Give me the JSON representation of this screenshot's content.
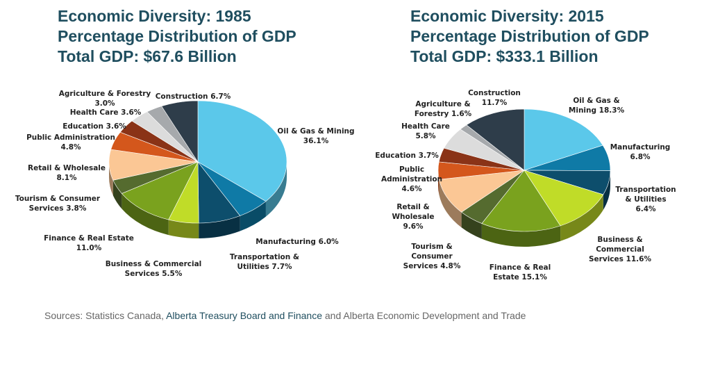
{
  "charts": [
    {
      "title": "Economic Diversity: 1985",
      "subtitle": "Percentage Distribution of GDP",
      "total": "Total GDP: $67.6 Billion"
    },
    {
      "title": "Economic Diversity: 2015",
      "subtitle": "Percentage Distribution of GDP",
      "total": "Total GDP: $333.1 Billion"
    }
  ],
  "sources": {
    "prefix": "Sources:  Statistics Canada, ",
    "org1": "Alberta Treasury Board and Finance",
    "mid": " and ",
    "org2": "Alberta Economic Development and Trade"
  },
  "chart_data": [
    {
      "type": "pie",
      "title": "Economic Diversity: 1985",
      "subtitle": "Percentage Distribution of GDP",
      "slices": [
        {
          "name": "Oil & Gas & Mining",
          "value": 36.1,
          "label": [
            "Oil & Gas & Mining",
            "36.1%"
          ],
          "color": "#5bc8ea"
        },
        {
          "name": "Manufacturing",
          "value": 6.0,
          "label": [
            "Manufacturing  6.0%"
          ],
          "color": "#0f7aa6"
        },
        {
          "name": "Transportation & Utilities",
          "value": 7.7,
          "label": [
            "Transportation &",
            "Utilities 7.7%"
          ],
          "color": "#0d4e6c"
        },
        {
          "name": "Business & Commercial Services",
          "value": 5.5,
          "label": [
            "Business & Commercial",
            "Services 5.5%"
          ],
          "color": "#c0dc28"
        },
        {
          "name": "Finance & Real Estate",
          "value": 11.0,
          "label": [
            "Finance & Real Estate",
            "11.0%"
          ],
          "color": "#7aa21e"
        },
        {
          "name": "Tourism & Consumer Services",
          "value": 3.8,
          "label": [
            "Tourism & Consumer",
            "Services 3.8%"
          ],
          "color": "#556b2f"
        },
        {
          "name": "Retail & Wholesale",
          "value": 8.1,
          "label": [
            "Retail & Wholesale",
            "8.1%"
          ],
          "color": "#fbc795"
        },
        {
          "name": "Public Administration",
          "value": 4.8,
          "label": [
            "Public Administration",
            "4.8%"
          ],
          "color": "#d4571c"
        },
        {
          "name": "Education",
          "value": 3.6,
          "label": [
            "Education  3.6%"
          ],
          "color": "#8a3317"
        },
        {
          "name": "Health Care",
          "value": 3.6,
          "label": [
            "Health Care 3.6%"
          ],
          "color": "#dcdcdc"
        },
        {
          "name": "Agriculture & Forestry",
          "value": 3.0,
          "label": [
            "Agriculture & Forestry",
            "3.0%"
          ],
          "color": "#a6a9ac"
        },
        {
          "name": "Construction",
          "value": 6.7,
          "label": [
            "Construction 6.7%"
          ],
          "color": "#2e3d4a"
        }
      ]
    },
    {
      "type": "pie",
      "title": "Economic Diversity: 2015",
      "subtitle": "Percentage Distribution of GDP",
      "slices": [
        {
          "name": "Oil & Gas & Mining",
          "value": 18.3,
          "label": [
            "Oil & Gas &",
            "Mining 18.3%"
          ],
          "color": "#5bc8ea"
        },
        {
          "name": "Manufacturing",
          "value": 6.8,
          "label": [
            "Manufacturing",
            "6.8%"
          ],
          "color": "#0f7aa6"
        },
        {
          "name": "Transportation & Utilities",
          "value": 6.4,
          "label": [
            "Transportation",
            "& Utilities",
            "6.4%"
          ],
          "color": "#0d4e6c"
        },
        {
          "name": "Business & Commercial Services",
          "value": 11.6,
          "label": [
            "Business &",
            "Commercial",
            "Services 11.6%"
          ],
          "color": "#c0dc28"
        },
        {
          "name": "Finance & Real Estate",
          "value": 15.1,
          "label": [
            "Finance & Real",
            "Estate 15.1%"
          ],
          "color": "#7aa21e"
        },
        {
          "name": "Tourism & Consumer Services",
          "value": 4.8,
          "label": [
            "Tourism &",
            "Consumer",
            "Services 4.8%"
          ],
          "color": "#556b2f"
        },
        {
          "name": "Retail & Wholesale",
          "value": 9.6,
          "label": [
            "Retail &",
            "Wholesale",
            "9.6%"
          ],
          "color": "#fbc795"
        },
        {
          "name": "Public Administration",
          "value": 4.6,
          "label": [
            "Public",
            "Administration",
            "4.6%"
          ],
          "color": "#d4571c"
        },
        {
          "name": "Education",
          "value": 3.7,
          "label": [
            "Education  3.7%"
          ],
          "color": "#8a3317"
        },
        {
          "name": "Health Care",
          "value": 5.8,
          "label": [
            "Health Care",
            "5.8%"
          ],
          "color": "#dcdcdc"
        },
        {
          "name": "Agriculture & Forestry",
          "value": 1.6,
          "label": [
            "Agriculture &",
            "Forestry 1.6%"
          ],
          "color": "#a6a9ac"
        },
        {
          "name": "Construction",
          "value": 11.7,
          "label": [
            "Construction",
            "11.7%"
          ],
          "color": "#2e3d4a"
        }
      ]
    }
  ]
}
